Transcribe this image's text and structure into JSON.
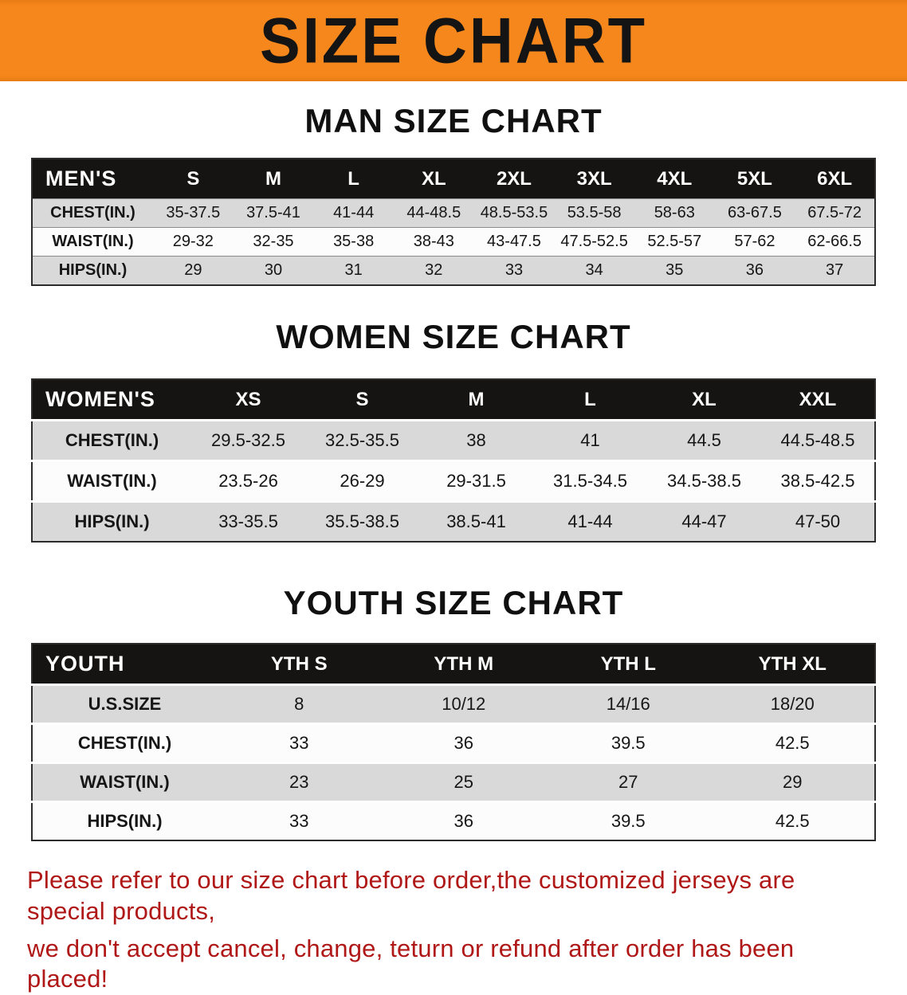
{
  "banner": {
    "title": "SIZE CHART",
    "bg": "#f6871d"
  },
  "sections": [
    {
      "heading": "MAN SIZE CHART",
      "table": {
        "corner": "MEN'S",
        "columns": [
          "S",
          "M",
          "L",
          "XL",
          "2XL",
          "3XL",
          "4XL",
          "5XL",
          "6XL"
        ],
        "rows": [
          {
            "label": "CHEST(IN.)",
            "values": [
              "35-37.5",
              "37.5-41",
              "41-44",
              "44-48.5",
              "48.5-53.5",
              "53.5-58",
              "58-63",
              "63-67.5",
              "67.5-72"
            ]
          },
          {
            "label": "WAIST(IN.)",
            "values": [
              "29-32",
              "32-35",
              "35-38",
              "38-43",
              "43-47.5",
              "47.5-52.5",
              "52.5-57",
              "57-62",
              "62-66.5"
            ]
          },
          {
            "label": "HIPS(IN.)",
            "values": [
              "29",
              "30",
              "31",
              "32",
              "33",
              "34",
              "35",
              "36",
              "37"
            ]
          }
        ]
      }
    },
    {
      "heading": "WOMEN SIZE CHART",
      "table": {
        "corner": "WOMEN'S",
        "columns": [
          "XS",
          "S",
          "M",
          "L",
          "XL",
          "XXL"
        ],
        "rows": [
          {
            "label": "CHEST(IN.)",
            "values": [
              "29.5-32.5",
              "32.5-35.5",
              "38",
              "41",
              "44.5",
              "44.5-48.5"
            ]
          },
          {
            "label": "WAIST(IN.)",
            "values": [
              "23.5-26",
              "26-29",
              "29-31.5",
              "31.5-34.5",
              "34.5-38.5",
              "38.5-42.5"
            ]
          },
          {
            "label": "HIPS(IN.)",
            "values": [
              "33-35.5",
              "35.5-38.5",
              "38.5-41",
              "41-44",
              "44-47",
              "47-50"
            ]
          }
        ]
      }
    },
    {
      "heading": "YOUTH SIZE CHART",
      "table": {
        "corner": "YOUTH",
        "columns": [
          "YTH S",
          "YTH M",
          "YTH L",
          "YTH XL"
        ],
        "rows": [
          {
            "label": "U.S.SIZE",
            "values": [
              "8",
              "10/12",
              "14/16",
              "18/20"
            ]
          },
          {
            "label": "CHEST(IN.)",
            "values": [
              "33",
              "36",
              "39.5",
              "42.5"
            ]
          },
          {
            "label": "WAIST(IN.)",
            "values": [
              "23",
              "25",
              "27",
              "29"
            ]
          },
          {
            "label": "HIPS(IN.)",
            "values": [
              "33",
              "36",
              "39.5",
              "42.5"
            ]
          }
        ]
      }
    }
  ],
  "footer": {
    "color": "#b01818",
    "lines": [
      "Please refer to our size chart before order,the customized jerseys are special products,",
      "we don't accept cancel, change, teturn or refund after order has been placed!"
    ]
  }
}
